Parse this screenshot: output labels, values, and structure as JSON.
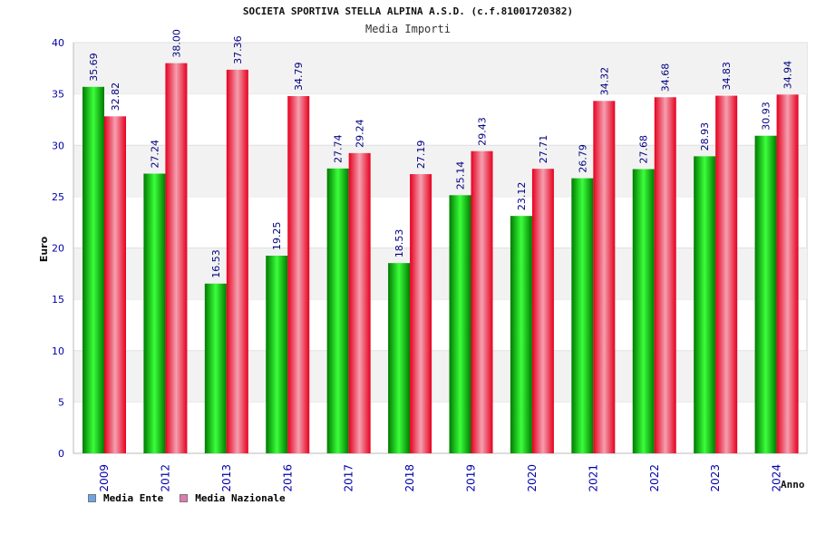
{
  "header": {
    "title": "SOCIETA SPORTIVA STELLA ALPINA A.S.D. (c.f.81001720382)",
    "subtitle": "Media Importi"
  },
  "legend": {
    "items": [
      {
        "label": "Media Ente",
        "swatch_color": "#6aa5e8"
      },
      {
        "label": "Media Nazionale",
        "swatch_color": "#e27ab0"
      }
    ]
  },
  "colors": {
    "ente_dark": "#007a00",
    "ente_light": "#3bff3b",
    "nazionale_dark": "#e6001f",
    "nazionale_light": "#f4a0b0",
    "label_text": "#000080",
    "axis_text": "#0000aa",
    "band": "#f2f2f2"
  },
  "chart_data": {
    "type": "bar",
    "title": "SOCIETA SPORTIVA STELLA ALPINA A.S.D. (c.f.81001720382)",
    "subtitle": "Media Importi",
    "xlabel": "Anno",
    "ylabel": "Euro",
    "ylim": [
      0,
      40
    ],
    "yticks": [
      0,
      5,
      10,
      15,
      20,
      25,
      30,
      35,
      40
    ],
    "categories": [
      "2009",
      "2012",
      "2013",
      "2016",
      "2017",
      "2018",
      "2019",
      "2020",
      "2021",
      "2022",
      "2023",
      "2024"
    ],
    "series": [
      {
        "name": "Media Ente",
        "values": [
          35.69,
          27.24,
          16.53,
          19.25,
          27.74,
          18.53,
          25.14,
          23.12,
          26.79,
          27.68,
          28.93,
          30.93
        ]
      },
      {
        "name": "Media Nazionale",
        "values": [
          32.82,
          38.0,
          37.36,
          34.79,
          29.24,
          27.19,
          29.43,
          27.71,
          34.32,
          34.68,
          34.83,
          34.94
        ]
      }
    ],
    "data_labels": [
      [
        "35.69",
        "27.24",
        "16.53",
        "19.25",
        "27.74",
        "18.53",
        "25.14",
        "23.12",
        "26.79",
        "27.68",
        "28.93",
        "30.93"
      ],
      [
        "32.82",
        "38.00",
        "37.36",
        "34.79",
        "29.24",
        "27.19",
        "29.43",
        "27.71",
        "34.32",
        "34.68",
        "34.83",
        "34.94"
      ]
    ],
    "grid": true,
    "legend_position": "bottom-left"
  }
}
